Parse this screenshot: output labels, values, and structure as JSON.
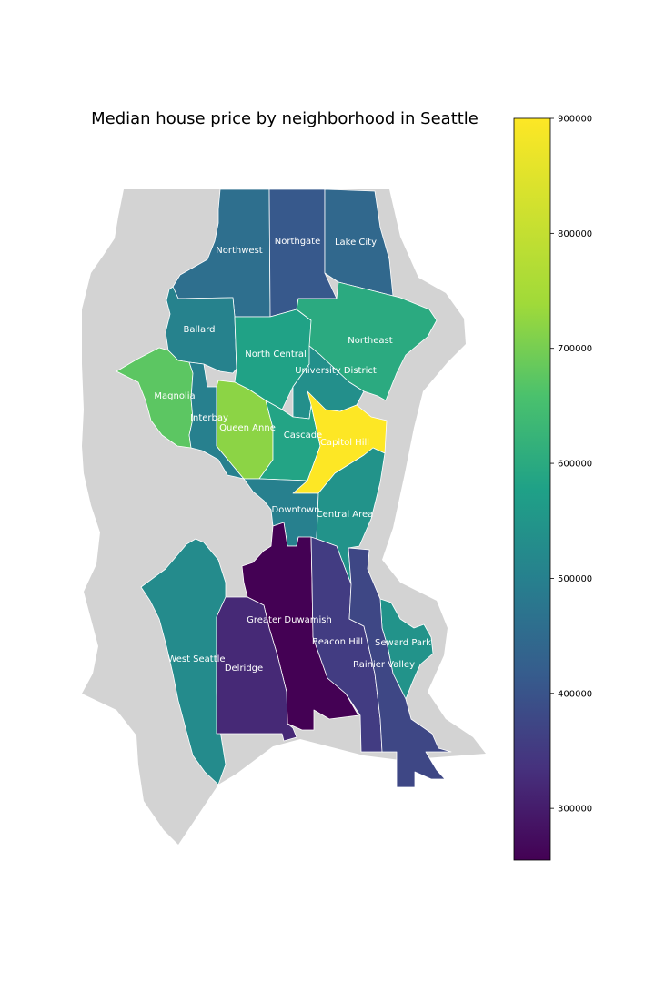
{
  "chart_data": {
    "type": "choropleth",
    "title": "Median house price by neighborhood in Seattle",
    "colormap": "viridis",
    "colorbar": {
      "min": 255000,
      "max": 900000,
      "ticks": [
        300000,
        400000,
        500000,
        600000,
        700000,
        800000,
        900000
      ],
      "tick_labels": [
        "300000",
        "400000",
        "500000",
        "600000",
        "700000",
        "800000",
        "900000"
      ]
    },
    "neighborhoods": [
      {
        "name": "Northwest",
        "value": 460000
      },
      {
        "name": "Northgate",
        "value": 410000
      },
      {
        "name": "Lake City",
        "value": 445000
      },
      {
        "name": "Ballard",
        "value": 505000
      },
      {
        "name": "North Central",
        "value": 580000
      },
      {
        "name": "Northeast",
        "value": 600000
      },
      {
        "name": "University District",
        "value": 535000
      },
      {
        "name": "Magnolia",
        "value": 675000
      },
      {
        "name": "Interbay",
        "value": 500000
      },
      {
        "name": "Queen Anne",
        "value": 720000
      },
      {
        "name": "Cascade",
        "value": 585000
      },
      {
        "name": "Capitol Hill",
        "value": 900000
      },
      {
        "name": "Downtown",
        "value": 500000
      },
      {
        "name": "Central Area",
        "value": 545000
      },
      {
        "name": "Greater Duwamish",
        "value": 255000
      },
      {
        "name": "Beacon Hill",
        "value": 355000
      },
      {
        "name": "Seward Park",
        "value": 545000
      },
      {
        "name": "Rainier Valley",
        "value": 375000
      },
      {
        "name": "West Seattle",
        "value": 525000
      },
      {
        "name": "Delridge",
        "value": 320000
      }
    ]
  }
}
